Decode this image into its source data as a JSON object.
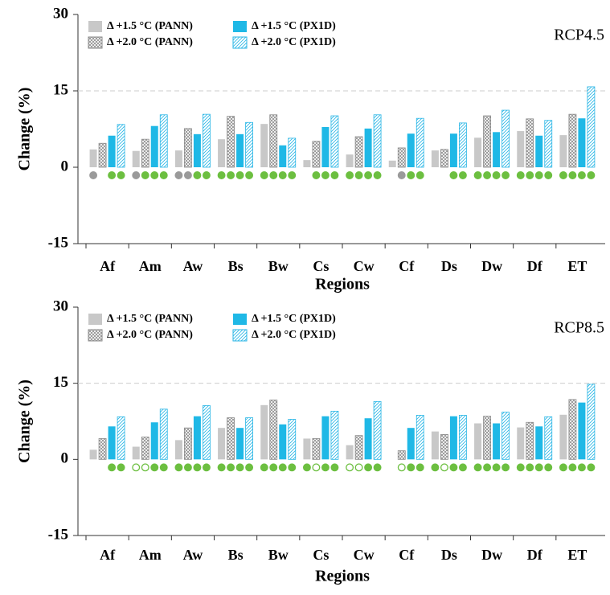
{
  "chart_data": [
    {
      "type": "bar",
      "annotation": "RCP4.5",
      "xlabel": "Regions",
      "ylabel": "Change (%)",
      "categories": [
        "Af",
        "Am",
        "Aw",
        "Bs",
        "Bw",
        "Cs",
        "Cw",
        "Cf",
        "Ds",
        "Dw",
        "Df",
        "ET"
      ],
      "ylim": [
        -15,
        30
      ],
      "yticks": [
        -15,
        0,
        15,
        30
      ],
      "grid": true,
      "legend": "upper left",
      "series": [
        {
          "name": "Δ +1.5 °C (PANN)",
          "color": "#c8c8c8",
          "pattern": "solid",
          "values": [
            3.5,
            3.2,
            3.3,
            5.5,
            8.5,
            1.4,
            2.5,
            1.3,
            3.3,
            5.8,
            7.1,
            6.3
          ],
          "markers": [
            "gray",
            "gray",
            "gray",
            "green",
            "green",
            null,
            "green",
            null,
            null,
            "green",
            "green",
            "green"
          ]
        },
        {
          "name": "Δ +2.0 °C (PANN)",
          "color": "#8a8a8a",
          "pattern": "crosshatch",
          "values": [
            4.7,
            5.5,
            7.6,
            10.0,
            10.3,
            5.1,
            6.0,
            3.8,
            3.5,
            10.1,
            9.5,
            10.4
          ],
          "markers": [
            null,
            "green",
            "gray",
            "green",
            "green",
            "green",
            "green",
            "gray",
            null,
            "green",
            "green",
            "green"
          ]
        },
        {
          "name": "Δ +1.5 °C (PX1D)",
          "color": "#1fb8e6",
          "pattern": "solid",
          "values": [
            6.2,
            8.1,
            6.5,
            6.5,
            4.3,
            7.9,
            7.6,
            6.6,
            6.6,
            6.9,
            6.2,
            9.6
          ],
          "markers": [
            "green",
            "green",
            "green",
            "green",
            "green",
            "green",
            "green",
            "green",
            "green",
            "green",
            "green",
            "green"
          ]
        },
        {
          "name": "Δ +2.0 °C (PX1D)",
          "color": "#29b6e6",
          "pattern": "hatch",
          "values": [
            8.4,
            10.3,
            10.4,
            8.8,
            5.7,
            10.1,
            10.3,
            9.6,
            8.7,
            11.2,
            9.2,
            15.8
          ],
          "markers": [
            "green",
            "green",
            "green",
            "green",
            "green",
            "green",
            "green",
            "green",
            "green",
            "green",
            "green",
            "green"
          ]
        }
      ]
    },
    {
      "type": "bar",
      "annotation": "RCP8.5",
      "xlabel": "Regions",
      "ylabel": "Change (%)",
      "categories": [
        "Af",
        "Am",
        "Aw",
        "Bs",
        "Bw",
        "Cs",
        "Cw",
        "Cf",
        "Ds",
        "Dw",
        "Df",
        "ET"
      ],
      "ylim": [
        -15,
        30
      ],
      "yticks": [
        -15,
        0,
        15,
        30
      ],
      "grid": true,
      "legend": "upper left",
      "series": [
        {
          "name": "Δ +1.5 °C (PANN)",
          "color": "#c8c8c8",
          "pattern": "solid",
          "values": [
            1.9,
            2.5,
            3.8,
            6.2,
            10.7,
            4.1,
            2.8,
            null,
            5.5,
            7.1,
            6.3,
            8.8
          ],
          "markers": [
            null,
            "open",
            "green",
            "green",
            "green",
            "green",
            "open",
            null,
            "green",
            "green",
            "green",
            "green"
          ]
        },
        {
          "name": "Δ +2.0 °C (PANN)",
          "color": "#8a8a8a",
          "pattern": "crosshatch",
          "values": [
            4.1,
            4.4,
            6.2,
            8.2,
            11.7,
            4.1,
            4.7,
            1.7,
            4.9,
            8.5,
            7.3,
            11.8
          ],
          "markers": [
            null,
            "open",
            "green",
            "green",
            "green",
            "open",
            "open",
            "open",
            "open",
            "green",
            "green",
            "green"
          ]
        },
        {
          "name": "Δ +1.5 °C (PX1D)",
          "color": "#1fb8e6",
          "pattern": "solid",
          "values": [
            6.5,
            7.3,
            8.5,
            6.2,
            6.9,
            8.5,
            8.1,
            6.2,
            8.5,
            7.1,
            6.5,
            11.2
          ],
          "markers": [
            "green",
            "green",
            "green",
            "green",
            "green",
            "green",
            "green",
            "green",
            "green",
            "green",
            "green",
            "green"
          ]
        },
        {
          "name": "Δ +2.0 °C (PX1D)",
          "color": "#29b6e6",
          "pattern": "hatch",
          "values": [
            8.4,
            9.9,
            10.6,
            8.2,
            7.9,
            9.5,
            11.4,
            8.7,
            8.7,
            9.3,
            8.4,
            14.8
          ],
          "markers": [
            "green",
            "green",
            "green",
            "green",
            "green",
            "green",
            "green",
            "green",
            "green",
            "green",
            "green",
            "green"
          ]
        }
      ]
    }
  ]
}
